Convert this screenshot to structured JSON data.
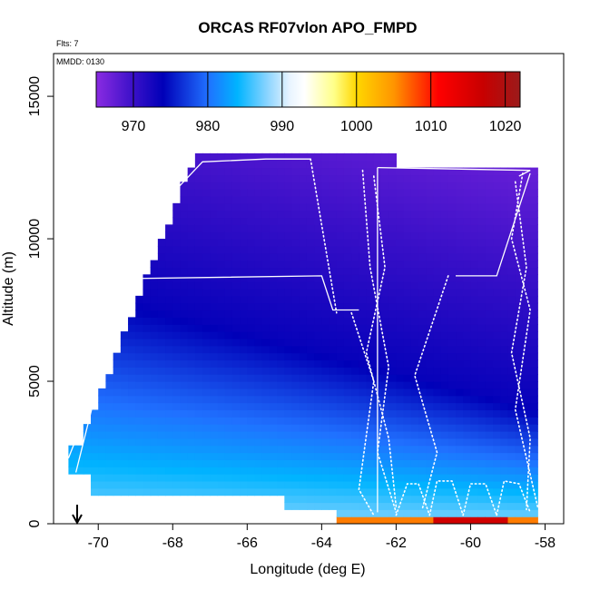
{
  "chart_data": {
    "type": "heatmap",
    "title": "ORCAS RF07vlon APO_FMPD",
    "subtitle_flights": "Flts: 7",
    "subtitle_date": "MMDD: 0130",
    "xlabel": "Longitude (deg E)",
    "ylabel": "Altitude (m)",
    "xlim": [
      -71.2,
      -57.5
    ],
    "ylim": [
      0,
      16500
    ],
    "x_ticks": [
      -70,
      -68,
      -66,
      -64,
      -62,
      -60,
      -58
    ],
    "x_tick_labels": [
      "-70",
      "-68",
      "-66",
      "-64",
      "-62",
      "-60",
      "-58"
    ],
    "y_ticks": [
      0,
      5000,
      10000,
      15000
    ],
    "y_tick_labels": [
      "0",
      "5000",
      "10000",
      "15000"
    ],
    "colorbar": {
      "range": [
        965,
        1022
      ],
      "ticks": [
        970,
        980,
        990,
        1000,
        1010,
        1020
      ],
      "tick_labels": [
        "970",
        "980",
        "990",
        "1000",
        "1010",
        "1020"
      ],
      "stops": [
        {
          "v": 965,
          "color": "#8a2be2"
        },
        {
          "v": 970,
          "color": "#3a10c8"
        },
        {
          "v": 974,
          "color": "#0000b8"
        },
        {
          "v": 980,
          "color": "#2070ff"
        },
        {
          "v": 984,
          "color": "#00b4ff"
        },
        {
          "v": 988,
          "color": "#8ad4ff"
        },
        {
          "v": 991,
          "color": "#e8f4ff"
        },
        {
          "v": 993,
          "color": "#ffffff"
        },
        {
          "v": 997,
          "color": "#ffff88"
        },
        {
          "v": 1000,
          "color": "#ffd700"
        },
        {
          "v": 1005,
          "color": "#ff9500"
        },
        {
          "v": 1011,
          "color": "#ff0000"
        },
        {
          "v": 1017,
          "color": "#c80000"
        },
        {
          "v": 1022,
          "color": "#9b1b1b"
        }
      ]
    },
    "grid": false,
    "marker": {
      "type": "down-arrow",
      "longitude": -70.9
    }
  }
}
